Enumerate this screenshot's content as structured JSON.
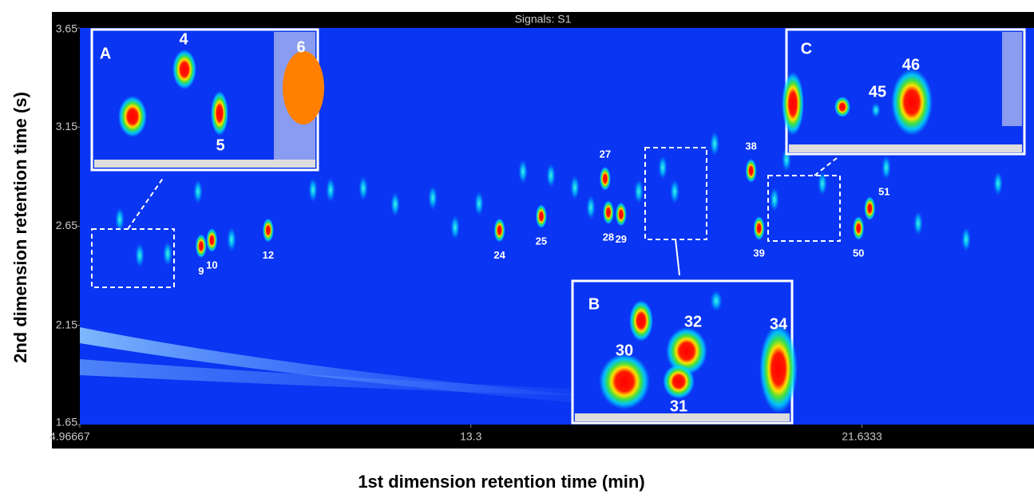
{
  "chart_data": {
    "type": "scatter",
    "title": "Signals: S1",
    "x_label": "1st dimension retention time (min)",
    "y_label": "2nd dimension retention time (s)",
    "xlim": [
      4.96667,
      25.3
    ],
    "ylim": [
      1.65,
      3.65
    ],
    "xticks": [
      4.96667,
      13.3,
      21.6333
    ],
    "yticks": [
      1.65,
      2.15,
      2.65,
      3.15,
      3.65
    ],
    "point_labels": [
      "9",
      "10",
      "12",
      "24",
      "25",
      "27",
      "28",
      "29",
      "38",
      "39",
      "50",
      "51"
    ],
    "x": [
      7.55,
      7.78,
      8.98,
      13.91,
      14.8,
      16.16,
      16.23,
      16.5,
      19.27,
      19.44,
      21.56,
      21.8
    ],
    "values": [
      2.55,
      2.58,
      2.63,
      2.63,
      2.7,
      2.89,
      2.72,
      2.71,
      2.93,
      2.64,
      2.64,
      2.74
    ],
    "insets": [
      {
        "letter": "A",
        "labels": [
          "4",
          "5",
          "6"
        ]
      },
      {
        "letter": "B",
        "labels": [
          "30",
          "31",
          "32",
          "34"
        ]
      },
      {
        "letter": "C",
        "labels": [
          "45",
          "46"
        ]
      }
    ]
  }
}
